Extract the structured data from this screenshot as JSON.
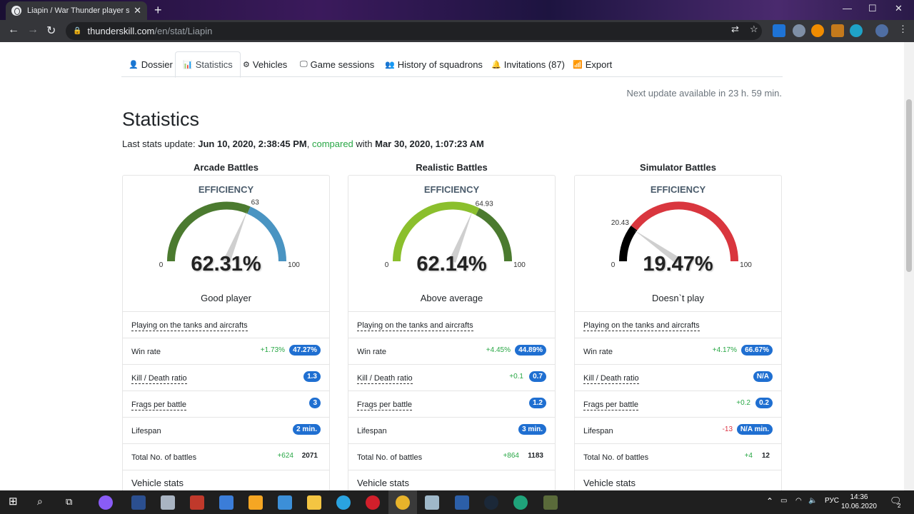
{
  "browser": {
    "tab_title": "Liapin / War Thunder player stati",
    "url_host": "thunderskill.com",
    "url_path": "/en/stat/Liapin"
  },
  "nav": {
    "tabs": [
      {
        "label": "Dossier",
        "icon": "user-icon"
      },
      {
        "label": "Statistics",
        "icon": "chart-icon"
      },
      {
        "label": "Vehicles",
        "icon": "gear-icon"
      },
      {
        "label": "Game sessions",
        "icon": "monitor-icon"
      },
      {
        "label": "History of squadrons",
        "icon": "users-icon"
      },
      {
        "label": "Invitations (87)",
        "icon": "bell-icon"
      },
      {
        "label": "Export",
        "icon": "rss-icon"
      }
    ]
  },
  "header": {
    "next_update": "Next update available in 23 h. 59 min.",
    "title": "Statistics",
    "last_update_prefix": "Last stats update: ",
    "last_update_date": "Jun 10, 2020, 2:38:45 PM",
    "comma": ",",
    "compared": "compared",
    "with": " with ",
    "compare_date": "Mar 30, 2020, 1:07:23 AM"
  },
  "columns": [
    {
      "title": "Arcade Battles",
      "efficiency_label": "EFFICIENCY",
      "efficiency_pct": "62.31%",
      "efficiency_value": 62.31,
      "marker_value": 63,
      "marker_label": "63",
      "gauge_min": "0",
      "gauge_max": "100",
      "rating": "Good player",
      "colors": {
        "left": "#4b7a2f",
        "right": "#4a94c2",
        "rating": "#5a8f3b"
      },
      "playing_on": "Playing on the tanks and aircrafts",
      "win_rate": {
        "label": "Win rate",
        "delta": "+1.73%",
        "value": "47.27%"
      },
      "kd": {
        "label": "Kill / Death ratio",
        "delta": "",
        "value": "1.3"
      },
      "frags": {
        "label": "Frags per battle",
        "delta": "",
        "value": "3"
      },
      "lifespan": {
        "label": "Lifespan",
        "delta": "",
        "value": "2 min."
      },
      "battles": {
        "label": "Total No. of battles",
        "delta": "+624",
        "value": "2071"
      },
      "vehicle_stats": "Vehicle stats"
    },
    {
      "title": "Realistic Battles",
      "efficiency_label": "EFFICIENCY",
      "efficiency_pct": "62.14%",
      "efficiency_value": 62.14,
      "marker_value": 64.93,
      "marker_label": "64.93",
      "gauge_min": "0",
      "gauge_max": "100",
      "rating": "Above average",
      "colors": {
        "left": "#8bbf2d",
        "right": "#4b7a2f",
        "rating": "#7fb52c"
      },
      "playing_on": "Playing on the tanks and aircrafts",
      "win_rate": {
        "label": "Win rate",
        "delta": "+4.45%",
        "value": "44.89%"
      },
      "kd": {
        "label": "Kill / Death ratio",
        "delta": "+0.1",
        "value": "0.7"
      },
      "frags": {
        "label": "Frags per battle",
        "delta": "",
        "value": "1.2"
      },
      "lifespan": {
        "label": "Lifespan",
        "delta": "",
        "value": "3 min."
      },
      "battles": {
        "label": "Total No. of battles",
        "delta": "+864",
        "value": "1183"
      },
      "vehicle_stats": "Vehicle stats"
    },
    {
      "title": "Simulator Battles",
      "efficiency_label": "EFFICIENCY",
      "efficiency_pct": "19.47%",
      "efficiency_value": 19.47,
      "marker_value": 20.43,
      "marker_label": "20.43",
      "gauge_min": "0",
      "gauge_max": "100",
      "rating": "Doesn`t play",
      "colors": {
        "left": "#000000",
        "right": "#d9363e",
        "rating": "#212529"
      },
      "playing_on": "Playing on the tanks and aircrafts",
      "win_rate": {
        "label": "Win rate",
        "delta": "+4.17%",
        "value": "66.67%"
      },
      "kd": {
        "label": "Kill / Death ratio",
        "delta": "",
        "value": "N/A"
      },
      "frags": {
        "label": "Frags per battle",
        "delta": "+0.2",
        "value": "0.2"
      },
      "lifespan": {
        "label": "Lifespan",
        "delta": "-13",
        "value": "N/A min."
      },
      "battles": {
        "label": "Total No. of battles",
        "delta": "+4",
        "value": "12"
      },
      "vehicle_stats": "Vehicle stats"
    }
  ],
  "taskbar": {
    "lang": "РУС",
    "time": "14:36",
    "date": "10.06.2020",
    "notification_count": "2"
  }
}
